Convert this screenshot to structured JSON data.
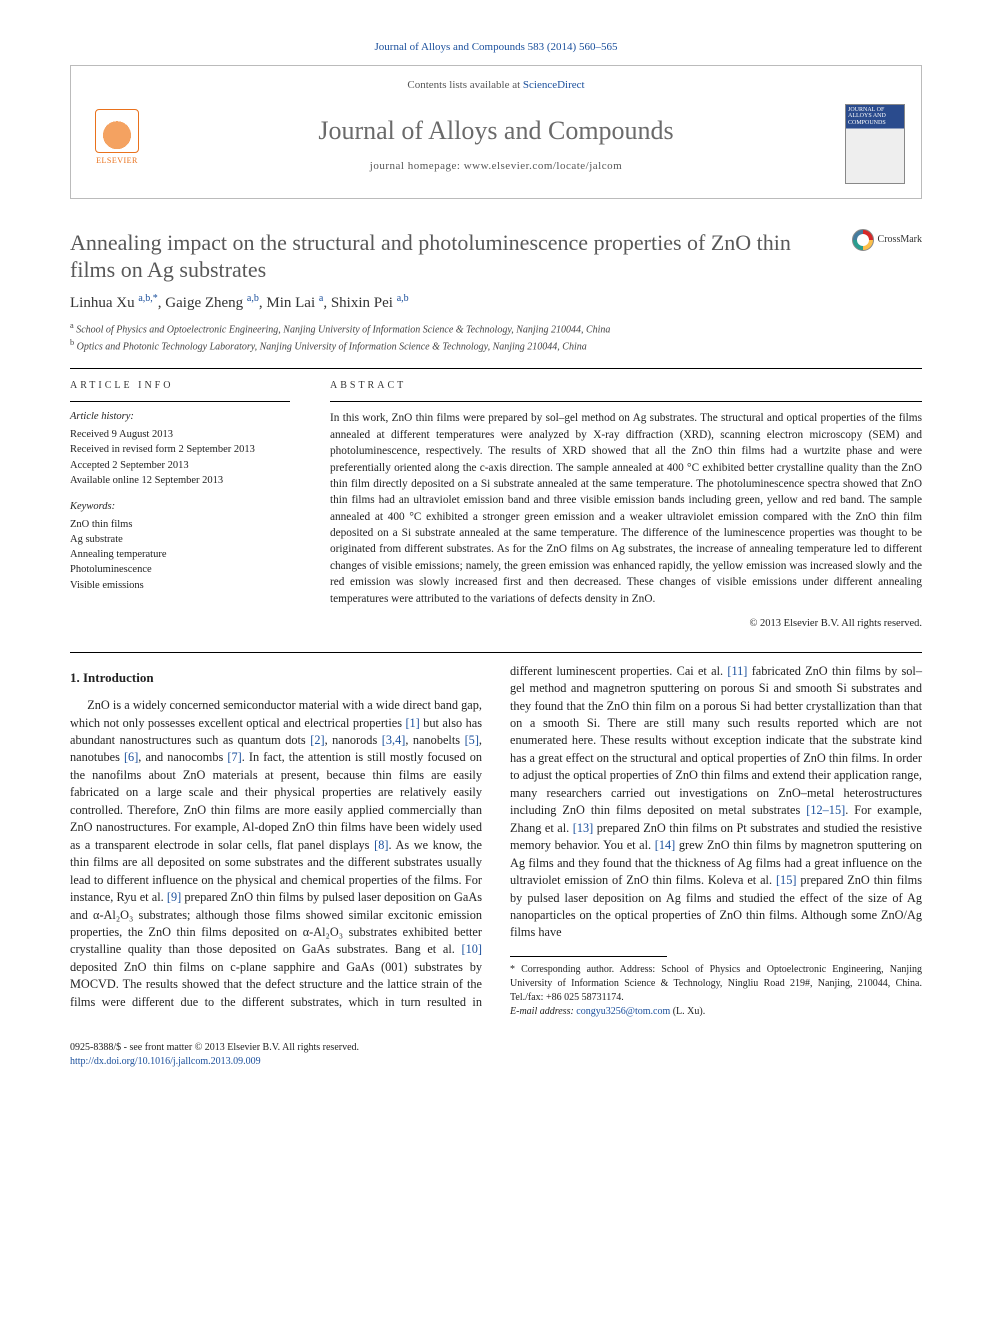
{
  "citation": "Journal of Alloys and Compounds 583 (2014) 560–565",
  "header": {
    "contents_line_prefix": "Contents lists available at ",
    "contents_link": "ScienceDirect",
    "journal_title": "Journal of Alloys and Compounds",
    "homepage_prefix": "journal homepage: ",
    "homepage_url": "www.elsevier.com/locate/jalcom",
    "publisher_label": "ELSEVIER",
    "cover_top": "JOURNAL OF ALLOYS AND COMPOUNDS"
  },
  "colors": {
    "link": "#1a4f9c",
    "title_gray": "#585858",
    "elsevier_orange": "#e9711c"
  },
  "article": {
    "title": "Annealing impact on the structural and photoluminescence properties of ZnO thin films on Ag substrates",
    "crossmark_label": "CrossMark",
    "authors_html": "Linhua Xu <sup>a,b,*</sup>, Gaige Zheng <sup>a,b</sup>, Min Lai <sup>a</sup>, Shixin Pei <sup>a,b</sup>",
    "affiliations": [
      "a School of Physics and Optoelectronic Engineering, Nanjing University of Information Science & Technology, Nanjing 210044, China",
      "b Optics and Photonic Technology Laboratory, Nanjing University of Information Science & Technology, Nanjing 210044, China"
    ]
  },
  "info": {
    "section_label": "ARTICLE INFO",
    "history_label": "Article history:",
    "history": [
      "Received 9 August 2013",
      "Received in revised form 2 September 2013",
      "Accepted 2 September 2013",
      "Available online 12 September 2013"
    ],
    "keywords_label": "Keywords:",
    "keywords": [
      "ZnO thin films",
      "Ag substrate",
      "Annealing temperature",
      "Photoluminescence",
      "Visible emissions"
    ]
  },
  "abstract": {
    "section_label": "ABSTRACT",
    "text": "In this work, ZnO thin films were prepared by sol–gel method on Ag substrates. The structural and optical properties of the films annealed at different temperatures were analyzed by X-ray diffraction (XRD), scanning electron microscopy (SEM) and photoluminescence, respectively. The results of XRD showed that all the ZnO thin films had a wurtzite phase and were preferentially oriented along the c-axis direction. The sample annealed at 400 °C exhibited better crystalline quality than the ZnO thin film directly deposited on a Si substrate annealed at the same temperature. The photoluminescence spectra showed that ZnO thin films had an ultraviolet emission band and three visible emission bands including green, yellow and red band. The sample annealed at 400 °C exhibited a stronger green emission and a weaker ultraviolet emission compared with the ZnO thin film deposited on a Si substrate annealed at the same temperature. The difference of the luminescence properties was thought to be originated from different substrates. As for the ZnO films on Ag substrates, the increase of annealing temperature led to different changes of visible emissions; namely, the green emission was enhanced rapidly, the yellow emission was increased slowly and the red emission was slowly increased first and then decreased. These changes of visible emissions under different annealing temperatures were attributed to the variations of defects density in ZnO.",
    "copyright": "© 2013 Elsevier B.V. All rights reserved."
  },
  "body": {
    "section1_heading": "1. Introduction",
    "para1_a": "ZnO is a widely concerned semiconductor material with a wide direct band gap, which not only possesses excellent optical and electrical properties ",
    "ref1": "[1]",
    "para1_b": " but also has abundant nanostructures such as quantum dots ",
    "ref2": "[2]",
    "para1_c": ", nanorods ",
    "ref34": "[3,4]",
    "para1_d": ", nanobelts ",
    "ref5": "[5]",
    "para1_e": ", nanotubes ",
    "ref6": "[6]",
    "para1_f": ", and nanocombs ",
    "ref7": "[7]",
    "para1_g": ". In fact, the attention is still mostly focused on the nanofilms about ZnO materials at present, because thin films are easily fabricated on a large scale and their physical properties are relatively easily controlled. Therefore, ZnO thin films are more easily applied commercially than ZnO nanostructures. For example, Al-doped ZnO thin films have been widely used as a transparent electrode in solar cells, flat panel displays ",
    "ref8": "[8]",
    "para1_h": ". As we know, the thin films are all deposited on some substrates and the different substrates usually lead to different influence on the physical and chemical properties of the films. For instance, Ryu et al. ",
    "ref9": "[9]",
    "para1_i": " prepared ZnO thin films by pulsed laser deposition on GaAs and α-Al₂O₃ substrates; although those films showed similar excitonic emission properties, the ZnO thin films deposited on α-Al₂O₃ ",
    "para2_a": "substrates exhibited better crystalline quality than those deposited on GaAs substrates. Bang et al. ",
    "ref10": "[10]",
    "para2_b": " deposited ZnO thin films on c-plane sapphire and GaAs (001) substrates by MOCVD. The results showed that the defect structure and the lattice strain of the films were different due to the different substrates, which in turn resulted in different luminescent properties. Cai et al. ",
    "ref11": "[11]",
    "para2_c": " fabricated ZnO thin films by sol–gel method and magnetron sputtering on porous Si and smooth Si substrates and they found that the ZnO thin film on a porous Si had better crystallization than that on a smooth Si. There are still many such results reported which are not enumerated here. These results without exception indicate that the substrate kind has a great effect on the structural and optical properties of ZnO thin films. In order to adjust the optical properties of ZnO thin films and extend their application range, many researchers carried out investigations on ZnO–metal heterostructures including ZnO thin films deposited on metal substrates ",
    "ref12_15": "[12–15]",
    "para2_d": ". For example, Zhang et al. ",
    "ref13": "[13]",
    "para2_e": " prepared ZnO thin films on Pt substrates and studied the resistive memory behavior. You et al. ",
    "ref14": "[14]",
    "para2_f": " grew ZnO thin films by magnetron sputtering on Ag films and they found that the thickness of Ag films had a great influence on the ultraviolet emission of ZnO thin films. Koleva et al. ",
    "ref15": "[15]",
    "para2_g": " prepared ZnO thin films by pulsed laser deposition on Ag films and studied the effect of the size of Ag nanoparticles on the optical properties of ZnO thin films. Although some ZnO/Ag films have"
  },
  "footnotes": {
    "corr": "* Corresponding author. Address: School of Physics and Optoelectronic Engineering, Nanjing University of Information Science & Technology, Ningliu Road 219#, Nanjing, 210044, China. Tel./fax: +86 025 58731174.",
    "email_label": "E-mail address:",
    "email": "congyu3256@tom.com",
    "email_who": "(L. Xu)."
  },
  "footer": {
    "left1": "0925-8388/$ - see front matter © 2013 Elsevier B.V. All rights reserved.",
    "left2": "http://dx.doi.org/10.1016/j.jallcom.2013.09.009"
  }
}
